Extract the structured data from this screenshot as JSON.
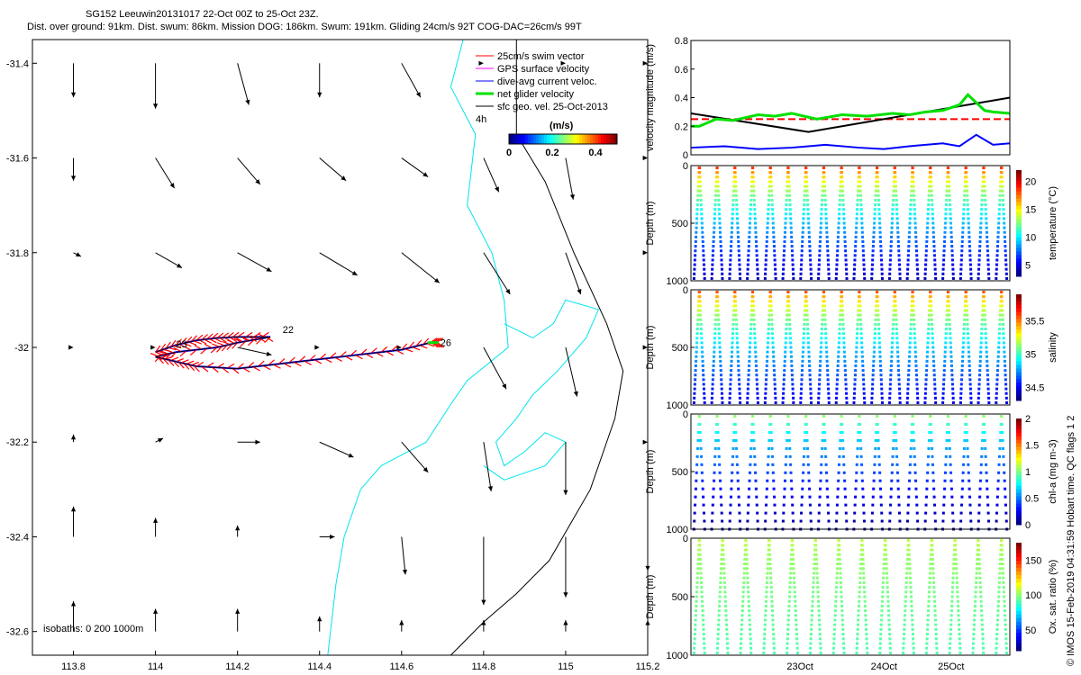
{
  "header": {
    "title": "SG152 Leeuwin20131017 22-Oct 00Z to 25-Oct 23Z.",
    "subtitle": "Dist. over ground: 91km. Dist. swum: 86km. Mission DOG: 186km. Swum: 191km. Gliding 24cm/s 92T COG-DAC=26cm/s 99T"
  },
  "credit": "© IMOS 15-Feb-2019 04:31:59 Hobart time. QC flags 1  2",
  "colors": {
    "swim": "#ff0000",
    "gps": "#ff00ff",
    "dac": "#0000ff",
    "net": "#00e000",
    "sfc": "#000000",
    "isobath_0": "#000000",
    "isobath_200": "#00e5ee",
    "isobath_1000": "#00e5ee"
  },
  "chart_data": [
    {
      "type": "scatter",
      "name": "map",
      "xlim": [
        113.7,
        115.2
      ],
      "ylim": [
        -32.65,
        -31.35
      ],
      "x_ticks": [
        113.8,
        114,
        114.2,
        114.4,
        114.6,
        114.8,
        115,
        115.2
      ],
      "x_tick_labels": [
        "113.8",
        "114",
        "114.2",
        "114.4",
        "114.6",
        "114.8",
        "115",
        "115.2"
      ],
      "y_ticks": [
        -31.4,
        -31.6,
        -31.8,
        -32,
        -32.2,
        -32.4,
        -32.6
      ],
      "y_tick_labels": [
        "-31.4",
        "-31.6",
        "-31.8",
        "-32",
        "-32.2",
        "-32.4",
        "-32.6"
      ],
      "legend": {
        "placement": "top-right",
        "entries": [
          "25cm/s swim vector",
          "GPS surface velocity",
          "dive-avg current veloc.",
          "net glider velocity",
          "sfc geo. vel. 25-Oct-2013"
        ]
      },
      "legend_extra": "4h",
      "colorbar": {
        "label": "(m/s)",
        "min": 0,
        "max": 0.5,
        "ticks": [
          0,
          0.2,
          0.4
        ],
        "tick_labels": [
          "0",
          "0.2",
          "0.4"
        ]
      },
      "isobaths_label": "isobaths: 0   200  1000m",
      "track_labels": [
        "22",
        "23",
        "26"
      ],
      "track": {
        "x": [
          114.0,
          114.05,
          114.1,
          114.15,
          114.2,
          114.28,
          114.2,
          114.15,
          114.05,
          114.0,
          114.05,
          114.1,
          114.2,
          114.3,
          114.4,
          114.5,
          114.6,
          114.67,
          114.69
        ],
        "y": [
          -32.01,
          -31.995,
          -31.985,
          -31.98,
          -31.978,
          -31.978,
          -31.99,
          -32.0,
          -32.01,
          -32.02,
          -32.03,
          -32.04,
          -32.045,
          -32.035,
          -32.025,
          -32.015,
          -32.005,
          -31.99,
          -31.99
        ]
      },
      "geo_vectors": {
        "grid_x": [
          113.8,
          114,
          114.2,
          114.4,
          114.6,
          114.8,
          115,
          115.2
        ],
        "grid_y": [
          -31.4,
          -31.6,
          -31.8,
          -32,
          -32.2,
          -32.4,
          -32.6
        ],
        "u": [
          [
            0.0,
            0.0,
            0.03,
            0.0,
            0.05,
            0.0,
            0.0,
            0.0
          ],
          [
            0.0,
            0.05,
            0.06,
            0.07,
            0.07,
            0.04,
            0.02,
            0.0
          ],
          [
            0.02,
            0.07,
            0.09,
            0.1,
            0.1,
            0.07,
            0.04,
            0.0
          ],
          [
            0.0,
            0.0,
            0.09,
            0.0,
            0.0,
            0.06,
            0.03,
            0.0
          ],
          [
            0.0,
            0.02,
            0.06,
            0.09,
            0.07,
            0.02,
            0.0,
            0.0
          ],
          [
            0.0,
            0.0,
            0.0,
            0.04,
            0.01,
            0.0,
            0.0,
            0.0
          ],
          [
            0.0,
            0.0,
            0.0,
            0.0,
            0.0,
            0.0,
            0.0,
            0.0
          ]
        ],
        "v": [
          [
            -0.09,
            -0.12,
            -0.11,
            -0.09,
            -0.09,
            0.0,
            0.0,
            0.0
          ],
          [
            -0.06,
            -0.08,
            -0.07,
            -0.06,
            -0.05,
            -0.09,
            -0.11,
            0.0
          ],
          [
            -0.01,
            -0.04,
            -0.05,
            -0.06,
            -0.08,
            -0.11,
            -0.11,
            0.0
          ],
          [
            0.0,
            0.0,
            -0.02,
            0.0,
            0.0,
            -0.11,
            -0.13,
            0.0
          ],
          [
            0.02,
            0.01,
            0.0,
            -0.04,
            -0.08,
            -0.13,
            -0.14,
            0.0
          ],
          [
            0.08,
            0.05,
            0.03,
            0.0,
            -0.1,
            -0.18,
            -0.16,
            -0.09
          ],
          [
            0.08,
            0.06,
            0.06,
            0.04,
            0.03,
            0.03,
            0.03,
            0.03
          ]
        ]
      }
    },
    {
      "type": "line",
      "name": "velocity",
      "ylabel": "velocity magnitude (m/s)",
      "xlim": [
        0,
        3.8
      ],
      "ylim": [
        0,
        0.8
      ],
      "y_ticks": [
        0,
        0.2,
        0.4,
        0.6,
        0.8
      ],
      "y_tick_labels": [
        "0",
        "0.2",
        "0.4",
        "0.6",
        "0.8"
      ],
      "series": [
        {
          "color": "#ff0000",
          "dashed": true,
          "x": [
            0,
            3.8
          ],
          "y": [
            0.25,
            0.25
          ]
        },
        {
          "color": "#000000",
          "x": [
            0,
            1.4,
            3.8
          ],
          "y": [
            0.29,
            0.16,
            0.4
          ]
        },
        {
          "color": "#0000ff",
          "x": [
            0,
            0.4,
            0.8,
            1.2,
            1.6,
            2.0,
            2.3,
            2.6,
            3.0,
            3.2,
            3.4,
            3.6,
            3.8
          ],
          "y": [
            0.05,
            0.06,
            0.04,
            0.05,
            0.07,
            0.05,
            0.04,
            0.06,
            0.08,
            0.06,
            0.14,
            0.07,
            0.08
          ]
        },
        {
          "color": "#00e000",
          "x": [
            0,
            0.1,
            0.3,
            0.5,
            0.8,
            1.0,
            1.2,
            1.5,
            1.8,
            2.1,
            2.4,
            2.6,
            2.8,
            3.0,
            3.2,
            3.3,
            3.5,
            3.6,
            3.8
          ],
          "y": [
            0.2,
            0.2,
            0.25,
            0.24,
            0.28,
            0.27,
            0.29,
            0.25,
            0.28,
            0.27,
            0.29,
            0.28,
            0.3,
            0.31,
            0.35,
            0.42,
            0.31,
            0.3,
            0.29
          ]
        }
      ]
    },
    {
      "type": "scatter",
      "name": "temperature",
      "ylabel": "Depth (m)",
      "ylim": [
        1000,
        0
      ],
      "y_ticks": [
        0,
        500,
        1000
      ],
      "y_tick_labels": [
        "0",
        "500",
        "1000"
      ],
      "colorbar": {
        "label": "temperature (°C)",
        "min": 3,
        "max": 22,
        "ticks": [
          5,
          10,
          15,
          20
        ],
        "tick_labels": [
          "5",
          "10",
          "15",
          "20"
        ]
      },
      "surface_value": 21,
      "deep_value": 4,
      "dives": 18
    },
    {
      "type": "scatter",
      "name": "salinity",
      "ylabel": "Depth (m)",
      "ylim": [
        1000,
        0
      ],
      "y_ticks": [
        0,
        500,
        1000
      ],
      "y_tick_labels": [
        "0",
        "500",
        "1000"
      ],
      "colorbar": {
        "label": "salinity",
        "min": 34.3,
        "max": 35.9,
        "ticks": [
          34.5,
          35,
          35.5
        ],
        "tick_labels": [
          "34.5",
          "35",
          "35.5"
        ]
      },
      "surface_value": 35.75,
      "deep_value": 34.45,
      "dives": 18
    },
    {
      "type": "scatter",
      "name": "chl-a",
      "ylabel": "Depth (m)",
      "ylim": [
        1000,
        0
      ],
      "y_ticks": [
        0,
        500,
        1000
      ],
      "y_tick_labels": [
        "0",
        "500",
        "1000"
      ],
      "colorbar": {
        "label": "chl-a (mg m-3)",
        "min": 0,
        "max": 2,
        "ticks": [
          0,
          0.5,
          1,
          1.5,
          2
        ],
        "tick_labels": [
          "0",
          "0.5",
          "1",
          "1.5",
          "2"
        ]
      },
      "surface_value": 1.2,
      "deep_value": 0.05,
      "dives": 18
    },
    {
      "type": "scatter",
      "name": "oxygen",
      "ylabel": "Depth (m)",
      "ylim": [
        1000,
        0
      ],
      "y_ticks": [
        0,
        500,
        1000
      ],
      "y_tick_labels": [
        "0",
        "500",
        "1000"
      ],
      "x_tick_labels": [
        "23Oct",
        "24Oct",
        "25Oct"
      ],
      "colorbar": {
        "label": "Ox. sat. ratio (%)",
        "min": 20,
        "max": 175,
        "ticks": [
          50,
          100,
          150
        ],
        "tick_labels": [
          "50",
          "100",
          "150"
        ]
      },
      "surface_value": 110,
      "deep_value": 90,
      "dives": 14
    }
  ]
}
